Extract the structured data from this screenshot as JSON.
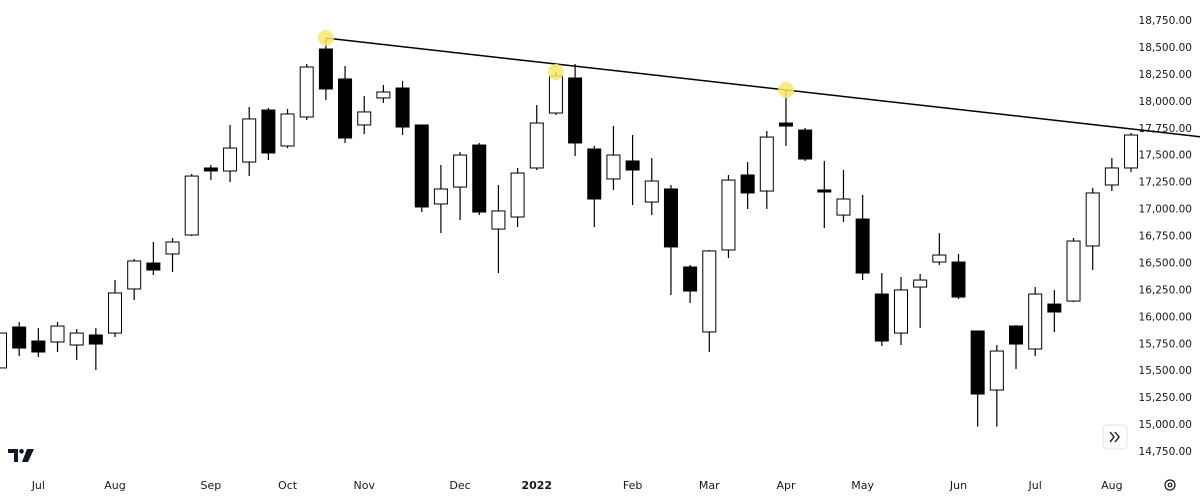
{
  "chart_data": {
    "type": "candlestick",
    "categories": [
      null,
      null,
      "Jul",
      null,
      null,
      null,
      "Aug",
      null,
      null,
      null,
      null,
      "Sep",
      null,
      null,
      null,
      "Oct",
      null,
      null,
      null,
      "Nov",
      null,
      null,
      null,
      null,
      "Dec",
      null,
      null,
      null,
      "2022",
      null,
      null,
      null,
      null,
      "Feb",
      null,
      null,
      null,
      "Mar",
      null,
      null,
      null,
      "Apr",
      null,
      null,
      null,
      "May",
      null,
      null,
      null,
      null,
      "Jun",
      null,
      null,
      null,
      "Jul",
      null,
      null,
      null,
      "Aug",
      null
    ],
    "open": [
      15530,
      15910,
      15780,
      15771,
      15743,
      15836,
      15854,
      16263,
      16504,
      16588,
      16764,
      17386,
      17358,
      17441,
      17924,
      17590,
      17859,
      18490,
      18212,
      17785,
      18036,
      18128,
      17785,
      17052,
      17209,
      17599,
      16819,
      16931,
      17386,
      17896,
      18221,
      17562,
      17284,
      17451,
      17070,
      17191,
      16467,
      15864,
      16625,
      17321,
      17172,
      17803,
      17738,
      17182,
      16949,
      16912,
      16216,
      15854,
      16281,
      16513,
      16513,
      15873,
      15325,
      15919,
      15706,
      16123,
      16151,
      16662,
      17228,
      17386
    ],
    "high": [
      15854,
      15957,
      15900,
      15957,
      15891,
      15900,
      16346,
      16541,
      16699,
      16736,
      17330,
      17414,
      17785,
      17952,
      17943,
      17933,
      18351,
      18592,
      18332,
      18054,
      18156,
      18193,
      17785,
      17414,
      17534,
      17618,
      17228,
      17386,
      17970,
      18277,
      18351,
      17590,
      17775,
      17692,
      17478,
      17228,
      16486,
      16625,
      17321,
      17441,
      17729,
      18110,
      17757,
      17451,
      17367,
      17135,
      16411,
      16374,
      16402,
      16782,
      16588,
      15873,
      15743,
      15928,
      16281,
      16253,
      16736,
      17201,
      17478,
      17711
    ],
    "low": [
      15530,
      15640,
      15632,
      15678,
      15604,
      15511,
      15817,
      16161,
      16393,
      16421,
      16755,
      17274,
      17256,
      17311,
      17460,
      17571,
      17831,
      18017,
      17618,
      17701,
      17989,
      17692,
      16977,
      16782,
      16903,
      16949,
      16411,
      16838,
      17367,
      17878,
      17497,
      16838,
      17182,
      17042,
      16949,
      16207,
      16133,
      15678,
      16550,
      17005,
      17005,
      17590,
      17451,
      16829,
      16884,
      16346,
      15734,
      15743,
      15901,
      16486,
      16170,
      14986,
      14986,
      15520,
      15641,
      15864,
      16142,
      16439,
      17172,
      17349
    ],
    "close": [
      15854,
      15715,
      15678,
      15919,
      15854,
      15752,
      16226,
      16523,
      16439,
      16699,
      17311,
      17358,
      17571,
      17841,
      17525,
      17887,
      18323,
      18119,
      17664,
      17906,
      18091,
      17766,
      17024,
      17191,
      17506,
      16977,
      16987,
      17339,
      17803,
      18240,
      17618,
      17098,
      17506,
      17367,
      17265,
      16653,
      16244,
      16616,
      17274,
      17154,
      17673,
      17775,
      17469,
      17163,
      17098,
      16411,
      15780,
      16254,
      16346,
      16578,
      16188,
      15288,
      15687,
      15752,
      16216,
      16049,
      16708,
      17154,
      17386,
      17692
    ],
    "up_color": "#ffffff",
    "down_color": "#000000",
    "trendline": {
      "x": [
        17,
        41
      ],
      "values": [
        18592,
        18110
      ],
      "color": "#000000"
    },
    "highlights": [
      17,
      29,
      41
    ],
    "highlight_color": "#f7e96b",
    "ylim": [
      14750,
      18750
    ],
    "yticks": [
      {
        "value": 14750,
        "label": "14,750.00"
      },
      {
        "value": 15000,
        "label": "15,000.00"
      },
      {
        "value": 15250,
        "label": "15,250.00"
      },
      {
        "value": 15500,
        "label": "15,500.00"
      },
      {
        "value": 15750,
        "label": "15,750.00"
      },
      {
        "value": 16000,
        "label": "16,000.00"
      },
      {
        "value": 16250,
        "label": "16,250.00"
      },
      {
        "value": 16500,
        "label": "16,500.00"
      },
      {
        "value": 16750,
        "label": "16,750.00"
      },
      {
        "value": 17000,
        "label": "17,000.00"
      },
      {
        "value": 17250,
        "label": "17,250.00"
      },
      {
        "value": 17500,
        "label": "17,500.00"
      },
      {
        "value": 17750,
        "label": "17,750.00"
      },
      {
        "value": 18000,
        "label": "18,000.00"
      },
      {
        "value": 18250,
        "label": "18,250.00"
      },
      {
        "value": 18500,
        "label": "18,500.00"
      },
      {
        "value": 18750,
        "label": "18,750.00"
      }
    ]
  }
}
